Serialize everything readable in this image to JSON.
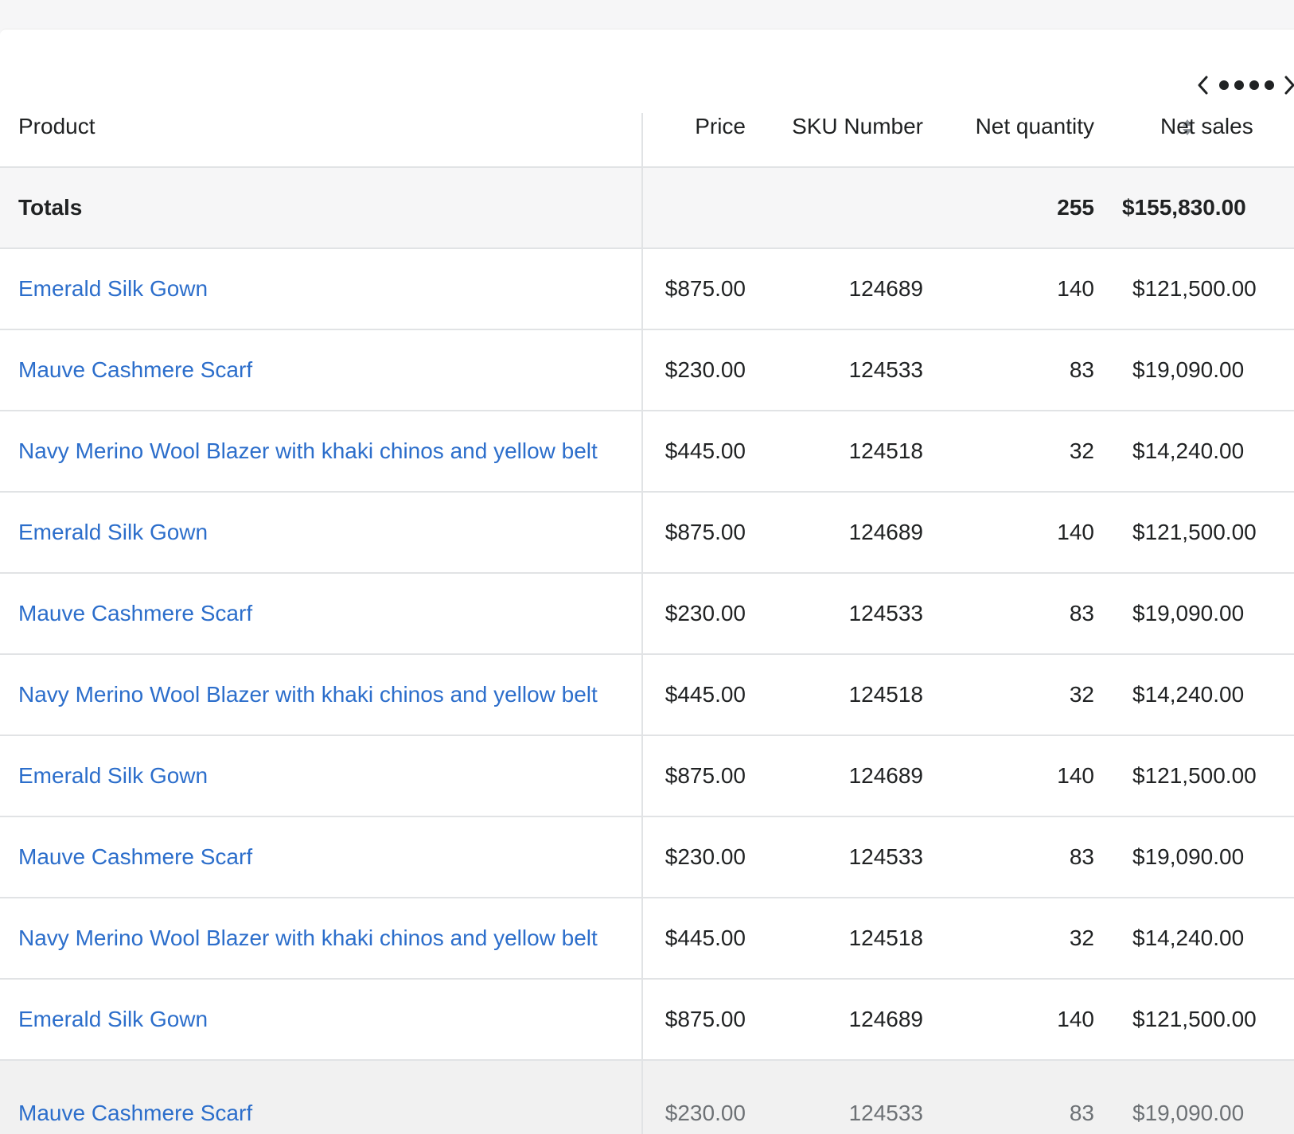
{
  "table": {
    "columns": {
      "product": "Product",
      "price": "Price",
      "sku": "SKU Number",
      "qty": "Net quantity",
      "sales": "Net sales"
    },
    "totals": {
      "label": "Totals",
      "qty": "255",
      "sales": "$155,830.00"
    },
    "rows": [
      {
        "product": "Emerald Silk Gown",
        "price": "$875.00",
        "sku": "124689",
        "qty": "140",
        "sales": "$121,500.00"
      },
      {
        "product": "Mauve Cashmere Scarf",
        "price": "$230.00",
        "sku": "124533",
        "qty": "83",
        "sales": "$19,090.00"
      },
      {
        "product": "Navy Merino Wool Blazer with khaki chinos and yellow belt",
        "price": "$445.00",
        "sku": "124518",
        "qty": "32",
        "sales": "$14,240.00"
      },
      {
        "product": "Emerald Silk Gown",
        "price": "$875.00",
        "sku": "124689",
        "qty": "140",
        "sales": "$121,500.00"
      },
      {
        "product": "Mauve Cashmere Scarf",
        "price": "$230.00",
        "sku": "124533",
        "qty": "83",
        "sales": "$19,090.00"
      },
      {
        "product": "Navy Merino Wool Blazer with khaki chinos and yellow belt",
        "price": "$445.00",
        "sku": "124518",
        "qty": "32",
        "sales": "$14,240.00"
      },
      {
        "product": "Emerald Silk Gown",
        "price": "$875.00",
        "sku": "124689",
        "qty": "140",
        "sales": "$121,500.00"
      },
      {
        "product": "Mauve Cashmere Scarf",
        "price": "$230.00",
        "sku": "124533",
        "qty": "83",
        "sales": "$19,090.00"
      },
      {
        "product": "Navy Merino Wool Blazer with khaki chinos and yellow belt",
        "price": "$445.00",
        "sku": "124518",
        "qty": "32",
        "sales": "$14,240.00"
      },
      {
        "product": "Emerald Silk Gown",
        "price": "$875.00",
        "sku": "124689",
        "qty": "140",
        "sales": "$121,500.00"
      },
      {
        "product": "Mauve Cashmere Scarf",
        "price": "$230.00",
        "sku": "124533",
        "qty": "83",
        "sales": "$19,090.00"
      }
    ]
  },
  "pagination": {
    "page_count": 4,
    "prev_icon": "chevron-left-icon",
    "next_icon": "chevron-right-icon"
  },
  "colors": {
    "link": "#2c6ecb",
    "totals_bg": "#f6f6f7",
    "border": "#e1e3e5"
  }
}
